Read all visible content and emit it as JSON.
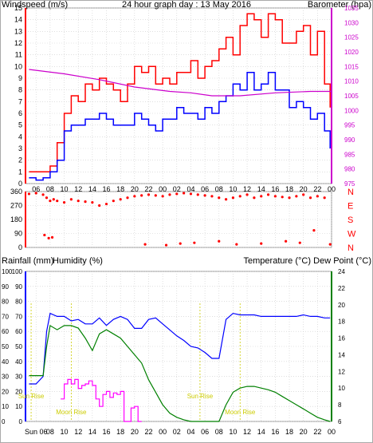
{
  "header": {
    "title": "24 hour graph day : 13 May 2016",
    "left_label": "Windspeed (m/s)",
    "right_label": "Barometer (hpa)"
  },
  "colors": {
    "wind_gust": "#ff0000",
    "wind_avg": "#0000ff",
    "barometer": "#cc00cc",
    "direction": "#ff0000",
    "rain": "#ff00ff",
    "humidity": "#0000ff",
    "temperature": "#000080",
    "dewpoint": "#008000",
    "sun_moon": "#cccc00",
    "grid": "#cccccc",
    "frame": "#ff0000"
  },
  "hour_ticks": [
    "06",
    "08",
    "10",
    "12",
    "14",
    "16",
    "18",
    "20",
    "22",
    "00",
    "02",
    "04",
    "06",
    "08",
    "10",
    "12",
    "14",
    "16",
    "18",
    "20",
    "22",
    "00"
  ],
  "bottom_ticks": [
    "Sun 06",
    "08",
    "10",
    "12",
    "14",
    "16",
    "18",
    "20",
    "22",
    "00",
    "02",
    "04",
    "06",
    "08",
    "10",
    "12",
    "14",
    "16",
    "18",
    "20",
    "22",
    "00"
  ],
  "chart_data": [
    {
      "type": "line",
      "name": "wind-barometer",
      "x_range": [
        4.5,
        48
      ],
      "ylim": [
        0,
        15
      ],
      "y2lim": [
        975,
        1035
      ],
      "y_ticks": [
        "0",
        "1",
        "2",
        "3",
        "4",
        "5",
        "6",
        "7",
        "8",
        "9",
        "10",
        "11",
        "12",
        "13",
        "14",
        "15"
      ],
      "y2_ticks": [
        "975",
        "980",
        "985",
        "990",
        "995",
        "1000",
        "1005",
        "1010",
        "1015",
        "1020",
        "1025",
        "1030",
        "1035"
      ],
      "series": [
        {
          "key": "gust",
          "x": [
            5.0,
            6.0,
            7.0,
            8.0,
            9.0,
            10.0,
            11.0,
            12.0,
            13.0,
            14.0,
            15.0,
            16.0,
            17.0,
            18.0,
            19.0,
            20.0,
            21.0,
            22.0,
            23.0,
            24.0,
            25.0,
            26.0,
            27.0,
            28.0,
            29.0,
            30.0,
            31.0,
            32.0,
            33.0,
            34.0,
            35.0,
            36.0,
            37.0,
            38.0,
            39.0,
            40.0,
            41.0,
            42.0,
            43.0,
            44.0,
            45.0,
            46.0,
            47.0,
            47.8
          ],
          "values": [
            1.0,
            1.0,
            1.0,
            1.5,
            3.5,
            6.0,
            7.5,
            7.0,
            8.5,
            8.0,
            9.0,
            8.5,
            8.0,
            7.0,
            8.5,
            10.0,
            9.5,
            10.0,
            8.5,
            9.0,
            8.5,
            9.5,
            9.5,
            10.5,
            9.0,
            10.0,
            10.5,
            11.5,
            12.5,
            11.0,
            13.5,
            14.5,
            14.0,
            12.5,
            14.5,
            14.0,
            12.0,
            12.0,
            13.0,
            13.5,
            11.0,
            13.0,
            8.5,
            6.5
          ]
        },
        {
          "key": "average",
          "x": [
            5.0,
            6.0,
            7.0,
            8.0,
            9.0,
            10.0,
            11.0,
            12.0,
            13.0,
            14.0,
            15.0,
            16.0,
            17.0,
            18.0,
            19.0,
            20.0,
            21.0,
            22.0,
            23.0,
            24.0,
            25.0,
            26.0,
            27.0,
            28.0,
            29.0,
            30.0,
            31.0,
            32.0,
            33.0,
            34.0,
            35.0,
            36.0,
            37.0,
            38.0,
            39.0,
            40.0,
            41.0,
            42.0,
            43.0,
            44.0,
            45.0,
            46.0,
            47.0,
            47.8
          ],
          "values": [
            0.5,
            0.3,
            0.5,
            1.0,
            2.0,
            4.5,
            5.0,
            5.0,
            5.5,
            5.5,
            6.0,
            5.5,
            5.0,
            5.0,
            5.0,
            6.0,
            5.5,
            5.0,
            4.5,
            5.5,
            5.5,
            6.5,
            6.0,
            6.0,
            5.5,
            6.5,
            6.0,
            7.0,
            7.5,
            8.5,
            8.0,
            9.5,
            8.0,
            8.5,
            9.5,
            8.0,
            8.0,
            6.5,
            7.0,
            6.5,
            5.5,
            6.0,
            4.5,
            3.0
          ]
        },
        {
          "key": "barometer",
          "x": [
            5.0,
            10.0,
            15.0,
            20.0,
            25.0,
            28.0,
            31.0,
            35.0,
            40.0,
            45.0,
            48.0
          ],
          "values": [
            1014.0,
            1012.5,
            1010.5,
            1008.0,
            1006.5,
            1006.0,
            1005.0,
            1005.0,
            1006.0,
            1006.5,
            1006.5
          ]
        }
      ]
    },
    {
      "type": "scatter",
      "name": "wind-direction",
      "x_range": [
        4.5,
        48
      ],
      "ylim": [
        0,
        360
      ],
      "y_ticks": [
        "0",
        "90",
        "180",
        "270",
        "360"
      ],
      "compass": [
        "N",
        "W",
        "S",
        "E",
        "N"
      ],
      "x": [
        5.0,
        6.0,
        7.0,
        7.5,
        8.0,
        8.5,
        9.0,
        10.0,
        11.0,
        12.0,
        13.0,
        14.0,
        15.0,
        16.0,
        17.0,
        18.0,
        19.0,
        20.0,
        21.0,
        22.0,
        23.0,
        24.0,
        25.0,
        26.0,
        27.0,
        28.0,
        29.0,
        30.0,
        31.0,
        32.0,
        33.0,
        34.0,
        35.0,
        36.0,
        37.0,
        38.0,
        39.0,
        40.0,
        41.0,
        42.0,
        43.0,
        44.0,
        45.0,
        46.0,
        47.0,
        7.2,
        7.8,
        8.3,
        21.5,
        24.5,
        26.5,
        28.5,
        32.0,
        34.5,
        38.0,
        41.5,
        43.5,
        45.5,
        47.8
      ],
      "values": [
        345,
        350,
        340,
        320,
        300,
        310,
        300,
        290,
        310,
        300,
        295,
        290,
        270,
        280,
        300,
        310,
        320,
        330,
        335,
        340,
        335,
        330,
        340,
        345,
        350,
        345,
        340,
        335,
        330,
        320,
        310,
        320,
        330,
        340,
        320,
        330,
        340,
        330,
        325,
        320,
        330,
        340,
        320,
        330,
        320,
        80,
        60,
        65,
        20,
        15,
        25,
        30,
        40,
        20,
        25,
        40,
        30,
        110,
        20
      ]
    },
    {
      "type": "line",
      "name": "rain-humidity-temperature",
      "x_range": [
        4.5,
        48
      ],
      "ylim": [
        0,
        100
      ],
      "y2lim": [
        6,
        24
      ],
      "y_ticks": [
        "0",
        "10",
        "20",
        "30",
        "40",
        "50",
        "60",
        "70",
        "80",
        "90",
        "100"
      ],
      "y2_ticks": [
        "6",
        "8",
        "10",
        "12",
        "14",
        "16",
        "18",
        "20",
        "22",
        "24"
      ],
      "labels": {
        "rainfall": "Rainfall (mm)",
        "humidity": "Humidity (%)",
        "temperature": "Temperature (°C)",
        "dewpoint": "Dew Point (°C)"
      },
      "series": [
        {
          "key": "humidity",
          "x": [
            5.0,
            6.0,
            7.0,
            7.5,
            8.0,
            9.0,
            10.0,
            11.0,
            12.0,
            13.0,
            14.0,
            15.0,
            16.0,
            17.0,
            18.0,
            19.0,
            20.0,
            21.0,
            22.0,
            23.0,
            24.0,
            25.0,
            26.0,
            27.0,
            28.0,
            29.0,
            30.0,
            31.0,
            32.0,
            33.0,
            34.0,
            35.0,
            36.0,
            37.0,
            38.0,
            39.0,
            40.0,
            41.0,
            42.0,
            43.0,
            44.0,
            45.0,
            46.0,
            47.0,
            47.8
          ],
          "values": [
            25,
            25,
            30,
            60,
            72,
            70,
            70,
            67,
            68,
            65,
            65,
            69,
            64,
            68,
            70,
            68,
            62,
            62,
            68,
            69,
            65,
            61,
            57,
            54,
            50,
            49,
            46,
            42,
            42,
            68,
            72,
            71,
            71,
            71,
            70,
            70,
            70,
            70,
            70,
            70,
            71,
            70,
            70,
            69,
            69
          ]
        },
        {
          "key": "temperature",
          "x": [
            5.0,
            6.0,
            7.0,
            7.5,
            8.0,
            9.0,
            10.0,
            11.0,
            12.0,
            13.0,
            14.0,
            15.0,
            16.0,
            17.0,
            18.0,
            19.0,
            20.0,
            21.0,
            22.0,
            23.0,
            24.0,
            25.0,
            26.0,
            27.0,
            28.0,
            29.0,
            30.0,
            31.0,
            32.0,
            33.0,
            34.0,
            35.0,
            36.0,
            37.0,
            38.0,
            39.0,
            40.0,
            41.0,
            42.0,
            43.0,
            44.0,
            45.0,
            46.0,
            47.0,
            47.8
          ],
          "values": [
            11.5,
            11.5,
            11.5,
            15.0,
            17.5,
            17.0,
            17.5,
            17.5,
            17.2,
            16.0,
            14.5,
            16.5,
            17.0,
            16.5,
            16.0,
            15.0,
            14.0,
            13.0,
            11.0,
            9.5,
            8.0,
            7.0,
            6.5,
            6.2,
            6.0,
            6.0,
            6.0,
            6.0,
            6.0,
            8.0,
            9.5,
            10.0,
            10.2,
            10.2,
            10.0,
            9.8,
            9.5,
            9.0,
            8.5,
            8.0,
            7.5,
            7.0,
            6.5,
            6.2,
            6.0
          ]
        },
        {
          "key": "rainfall",
          "x": [
            9.5,
            10.0,
            10.5,
            11.0,
            11.5,
            12.0,
            12.5,
            13.0,
            13.5,
            14.0,
            14.5,
            15.0,
            15.5,
            16.0,
            16.5,
            17.0,
            17.5,
            18.0,
            18.5,
            19.0,
            19.5,
            20.0,
            20.5,
            21.0
          ],
          "values": [
            15,
            25,
            28,
            25,
            28,
            22,
            24,
            25,
            27,
            24,
            15,
            10,
            18,
            20,
            16,
            19,
            18,
            20,
            0,
            0,
            9,
            10,
            0,
            0
          ]
        }
      ],
      "markers": [
        {
          "label": "Sun Rise",
          "x": 5.3
        },
        {
          "label": "Moon Rise",
          "x": 11.0
        },
        {
          "label": "Sun Rise",
          "x": 29.3
        },
        {
          "label": "Moon Rise",
          "x": 35.0
        }
      ]
    }
  ]
}
